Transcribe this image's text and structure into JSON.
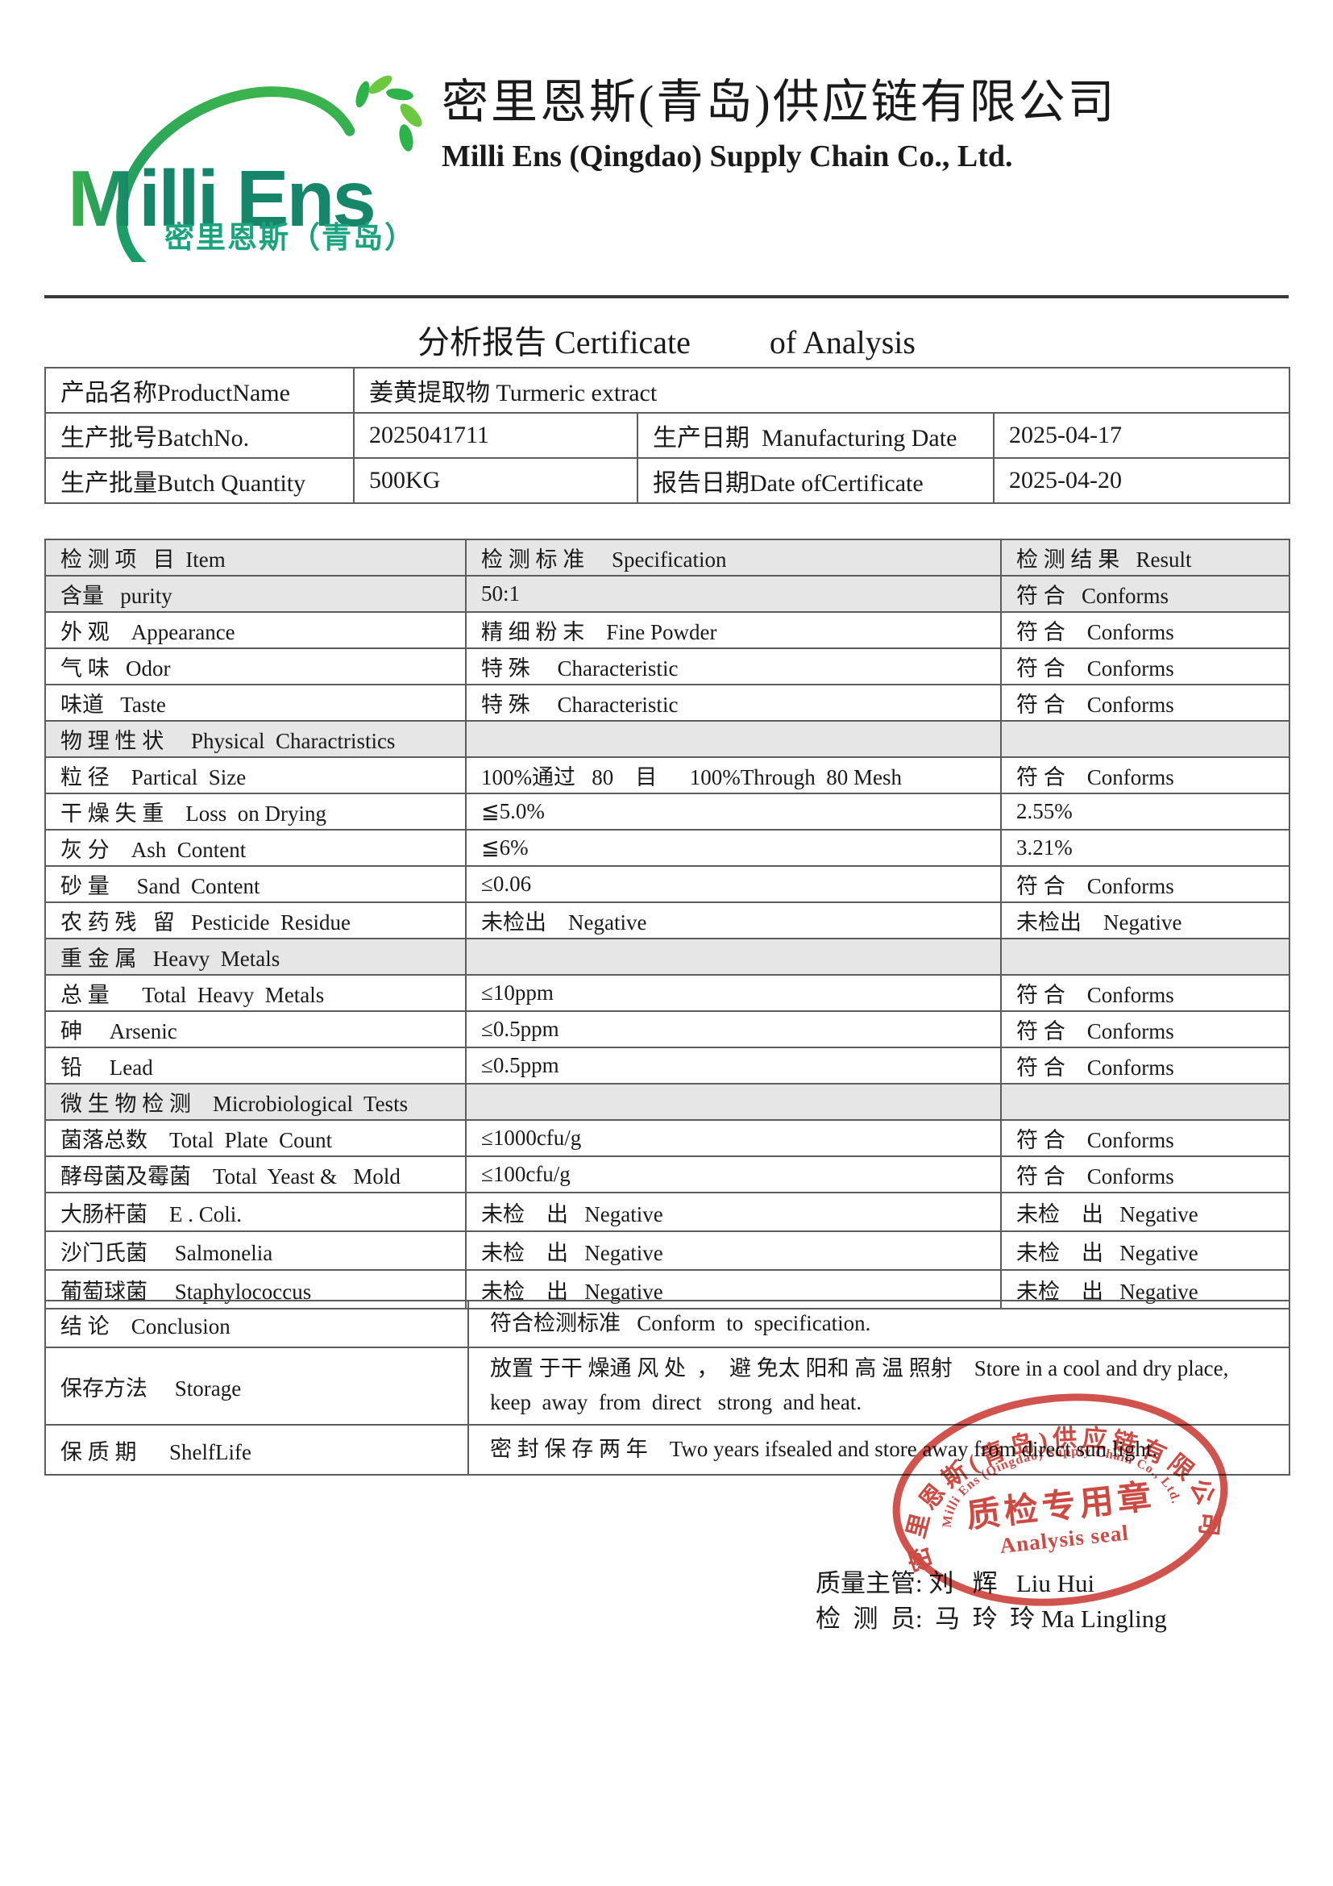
{
  "logo": {
    "wordmark_m": "M",
    "wordmark_rest": "illi Ens",
    "subtext": "密里恩斯（青岛）",
    "green_light": "#3cb54a",
    "green_dark": "#15866a",
    "green_mid": "#1ba37d"
  },
  "header": {
    "company_cn": "密里恩斯(青岛)供应链有限公司",
    "company_en": "Milli Ens (Qingdao) Supply Chain Co., Ltd."
  },
  "title": {
    "cn": "分析报告",
    "en1": "Certificate",
    "en2": "of Analysis"
  },
  "info_table": {
    "product_label": "产品名称ProductName",
    "product_value": "姜黄提取物 Turmeric extract",
    "batch_label": "生产批号BatchNo.",
    "batch_value": "2025041711",
    "mfg_label": "生产日期  Manufacturing Date",
    "mfg_value": "2025-04-17",
    "qty_label": "生产批量Butch Quantity",
    "qty_value": "500KG",
    "report_label": "报告日期Date ofCertificate",
    "report_value": "2025-04-20"
  },
  "test_table": {
    "headers": {
      "item": "检 测 项   目  Item",
      "spec": "检 测 标 准     Specification",
      "result": "检 测 结 果   Result"
    },
    "rows": [
      {
        "item": "含量   purity",
        "spec": "50:1",
        "result": "符 合   Conforms",
        "shaded": true
      },
      {
        "item": "外 观    Appearance",
        "spec": "精 细 粉 末    Fine Powder",
        "result": "符 合    Conforms"
      },
      {
        "item": "气 味   Odor",
        "spec": "特 殊     Characteristic",
        "result": "符 合    Conforms"
      },
      {
        "item": "味道   Taste",
        "spec": "特 殊     Characteristic",
        "result": "符 合    Conforms"
      },
      {
        "item": "物 理 性 状     Physical  Charactristics",
        "section": true
      },
      {
        "item": "粒 径    Partical  Size",
        "spec": "100%通过   80    目      100%Through  80 Mesh",
        "result": "符 合    Conforms"
      },
      {
        "item": "干 燥 失 重    Loss  on Drying",
        "spec": "≦5.0%",
        "result": "2.55%"
      },
      {
        "item": "灰 分    Ash  Content",
        "spec": "≦6%",
        "result": "3.21%"
      },
      {
        "item": "砂 量     Sand  Content",
        "spec": "≤0.06",
        "result": "符 合    Conforms"
      },
      {
        "item": "农 药 残   留   Pesticide  Residue",
        "spec": "未检出    Negative",
        "result": "未检出    Negative"
      },
      {
        "item": "重 金 属   Heavy  Metals",
        "section": true
      },
      {
        "item": "总 量      Total  Heavy  Metals",
        "spec": "≤10ppm",
        "result": "符 合    Conforms"
      },
      {
        "item": "砷     Arsenic",
        "spec": "≤0.5ppm",
        "result": "符 合    Conforms"
      },
      {
        "item": "铅     Lead",
        "spec": "≤0.5ppm",
        "result": "符 合    Conforms"
      },
      {
        "item": "微 生 物 检 测    Microbiological  Tests",
        "section": true
      },
      {
        "item": "菌落总数    Total  Plate  Count",
        "spec": "≤1000cfu/g",
        "result": "符 合    Conforms"
      },
      {
        "item": "酵母菌及霉菌    Total  Yeast &   Mold",
        "spec": "≤100cfu/g",
        "result": "符 合    Conforms"
      },
      {
        "item": "大肠杆菌    E . Coli.",
        "spec": "未检    出   Negative",
        "result": "未检    出   Negative",
        "h": 48
      },
      {
        "item": "沙门氏菌     Salmonelia",
        "spec": "未检    出   Negative",
        "result": "未检    出   Negative",
        "h": 48
      },
      {
        "item": "葡萄球菌     Staphylococcus",
        "spec": "未检    出   Negative",
        "result": "未检    出   Negative",
        "h": 48
      }
    ]
  },
  "conclusion_table": {
    "rows": [
      {
        "label": "结 论    Conclusion",
        "value": "符合检测标准   Conform  to  specification.",
        "h": 58
      },
      {
        "label": "保存方法     Storage",
        "value": "放置 于干 燥通 风 处  ，  避 免太 阳和 高 温 照射    Store in a cool and dry place,\nkeep  away  from  direct   strong  and heat.",
        "h": 96
      },
      {
        "label": "保 质 期      ShelfLife",
        "value": "密 封 保 存 两 年    Two years ifsealed and store away from direct sun light.",
        "h": 62
      }
    ]
  },
  "stamp": {
    "ring_cn": "密里恩斯(青岛)供应链有限公司",
    "ring_en": "Milli Ens (Qingdao) Supply Chain Co., Ltd.",
    "center_cn": "质检专用章",
    "center_en": "Analysis seal",
    "color": "#c93a33"
  },
  "signatures": {
    "line1": "质量主管: 刘   辉   Liu Hui",
    "line2": "检  测  员:  马  玲  玲 Ma Lingling"
  }
}
